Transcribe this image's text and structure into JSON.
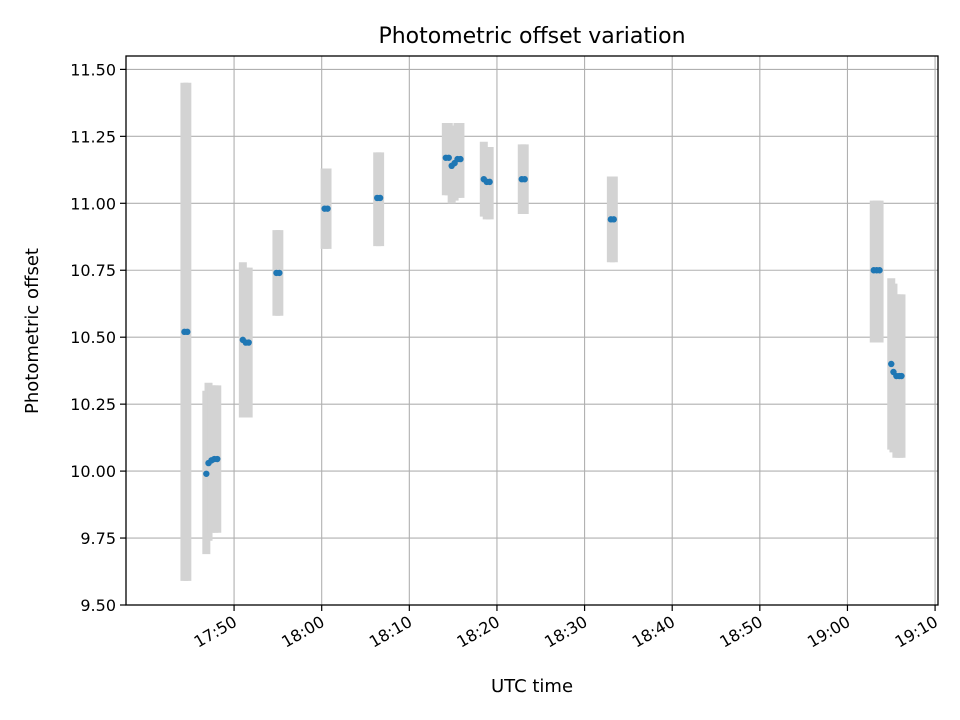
{
  "chart_data": {
    "type": "scatter",
    "title": "Photometric offset variation",
    "xlabel": "UTC time",
    "ylabel": "Photometric offset",
    "ylim": [
      9.5,
      11.55
    ],
    "xlim": [
      "17:37:40",
      "19:10:20"
    ],
    "x_ticks": [
      "17:50",
      "18:00",
      "18:10",
      "18:20",
      "18:30",
      "18:40",
      "18:50",
      "19:00",
      "19:10"
    ],
    "y_ticks": [
      "9.50",
      "9.75",
      "10.00",
      "10.25",
      "10.50",
      "10.75",
      "11.00",
      "11.25",
      "11.50"
    ],
    "grid": true,
    "point_color": "#1f77b4",
    "errorbar_color": "#d3d3d3",
    "points": [
      {
        "x": "17:44:20",
        "y": 10.52,
        "lo": 9.59,
        "hi": 11.45
      },
      {
        "x": "17:44:40",
        "y": 10.52,
        "lo": 9.59,
        "hi": 11.45
      },
      {
        "x": "17:46:50",
        "y": 9.99,
        "lo": 9.69,
        "hi": 10.3
      },
      {
        "x": "17:47:05",
        "y": 10.03,
        "lo": 9.74,
        "hi": 10.33
      },
      {
        "x": "17:47:25",
        "y": 10.04,
        "lo": 9.77,
        "hi": 10.32
      },
      {
        "x": "17:47:45",
        "y": 10.045,
        "lo": 9.77,
        "hi": 10.32
      },
      {
        "x": "17:48:05",
        "y": 10.045,
        "lo": 9.77,
        "hi": 10.32
      },
      {
        "x": "17:51:00",
        "y": 10.49,
        "lo": 10.2,
        "hi": 10.78
      },
      {
        "x": "17:51:20",
        "y": 10.48,
        "lo": 10.2,
        "hi": 10.76
      },
      {
        "x": "17:51:40",
        "y": 10.48,
        "lo": 10.2,
        "hi": 10.76
      },
      {
        "x": "17:54:50",
        "y": 10.74,
        "lo": 10.58,
        "hi": 10.9
      },
      {
        "x": "17:55:10",
        "y": 10.74,
        "lo": 10.58,
        "hi": 10.9
      },
      {
        "x": "18:00:20",
        "y": 10.98,
        "lo": 10.83,
        "hi": 11.13
      },
      {
        "x": "18:00:40",
        "y": 10.98,
        "lo": 10.83,
        "hi": 11.13
      },
      {
        "x": "18:06:20",
        "y": 11.02,
        "lo": 10.84,
        "hi": 11.19
      },
      {
        "x": "18:06:40",
        "y": 11.02,
        "lo": 10.84,
        "hi": 11.19
      },
      {
        "x": "18:14:10",
        "y": 11.17,
        "lo": 11.03,
        "hi": 11.3
      },
      {
        "x": "18:14:30",
        "y": 11.17,
        "lo": 11.03,
        "hi": 11.3
      },
      {
        "x": "18:14:50",
        "y": 11.14,
        "lo": 11.0,
        "hi": 11.29
      },
      {
        "x": "18:15:10",
        "y": 11.15,
        "lo": 11.01,
        "hi": 11.29
      },
      {
        "x": "18:15:30",
        "y": 11.165,
        "lo": 11.02,
        "hi": 11.3
      },
      {
        "x": "18:15:50",
        "y": 11.165,
        "lo": 11.02,
        "hi": 11.3
      },
      {
        "x": "18:18:30",
        "y": 11.09,
        "lo": 10.95,
        "hi": 11.23
      },
      {
        "x": "18:18:50",
        "y": 11.08,
        "lo": 10.94,
        "hi": 11.21
      },
      {
        "x": "18:19:10",
        "y": 11.08,
        "lo": 10.94,
        "hi": 11.21
      },
      {
        "x": "18:22:50",
        "y": 11.09,
        "lo": 10.96,
        "hi": 11.22
      },
      {
        "x": "18:23:10",
        "y": 11.09,
        "lo": 10.96,
        "hi": 11.22
      },
      {
        "x": "18:33:00",
        "y": 10.94,
        "lo": 10.78,
        "hi": 11.1
      },
      {
        "x": "18:33:20",
        "y": 10.94,
        "lo": 10.78,
        "hi": 11.1
      },
      {
        "x": "19:03:00",
        "y": 10.75,
        "lo": 10.48,
        "hi": 11.01
      },
      {
        "x": "19:03:20",
        "y": 10.75,
        "lo": 10.48,
        "hi": 11.01
      },
      {
        "x": "19:03:40",
        "y": 10.75,
        "lo": 10.48,
        "hi": 11.01
      },
      {
        "x": "19:05:00",
        "y": 10.4,
        "lo": 10.08,
        "hi": 10.72
      },
      {
        "x": "19:05:15",
        "y": 10.37,
        "lo": 10.07,
        "hi": 10.7
      },
      {
        "x": "19:05:35",
        "y": 10.355,
        "lo": 10.05,
        "hi": 10.66
      },
      {
        "x": "19:05:55",
        "y": 10.355,
        "lo": 10.05,
        "hi": 10.66
      },
      {
        "x": "19:06:10",
        "y": 10.355,
        "lo": 10.05,
        "hi": 10.66
      }
    ]
  }
}
